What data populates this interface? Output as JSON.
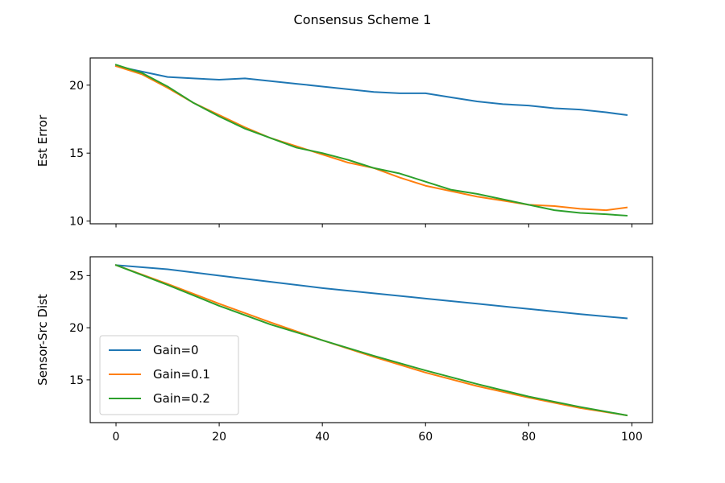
{
  "figure": {
    "title": "Consensus Scheme 1"
  },
  "chart_data": [
    {
      "type": "line",
      "title": "",
      "xlabel": "",
      "ylabel": "Est Error",
      "xlim": [
        -5,
        104
      ],
      "ylim": [
        9.8,
        22.0
      ],
      "xticks": [
        0,
        20,
        40,
        60,
        80,
        100
      ],
      "yticks": [
        10,
        15,
        20
      ],
      "show_xtick_labels": false,
      "grid": false,
      "x": [
        0,
        5,
        10,
        15,
        20,
        25,
        30,
        35,
        40,
        45,
        50,
        55,
        60,
        65,
        70,
        75,
        80,
        85,
        90,
        95,
        99
      ],
      "series": [
        {
          "name": "Gain=0",
          "color": "#1f77b4",
          "values": [
            21.4,
            21.0,
            20.6,
            20.5,
            20.4,
            20.5,
            20.3,
            20.1,
            19.9,
            19.7,
            19.5,
            19.4,
            19.4,
            19.1,
            18.8,
            18.6,
            18.5,
            18.3,
            18.2,
            18.0,
            17.8
          ]
        },
        {
          "name": "Gain=0.1",
          "color": "#ff7f0e",
          "values": [
            21.4,
            20.8,
            19.8,
            18.7,
            17.8,
            16.9,
            16.1,
            15.5,
            14.9,
            14.3,
            13.9,
            13.2,
            12.6,
            12.2,
            11.8,
            11.5,
            11.2,
            11.1,
            10.9,
            10.8,
            11.0
          ]
        },
        {
          "name": "Gain=0.2",
          "color": "#2ca02c",
          "values": [
            21.5,
            20.9,
            19.9,
            18.7,
            17.7,
            16.8,
            16.1,
            15.4,
            15.0,
            14.5,
            13.9,
            13.5,
            12.9,
            12.3,
            12.0,
            11.6,
            11.2,
            10.8,
            10.6,
            10.5,
            10.4
          ]
        }
      ]
    },
    {
      "type": "line",
      "title": "",
      "xlabel": "",
      "ylabel": "Sensor-Src Dist",
      "xlim": [
        -5,
        104
      ],
      "ylim": [
        10.9,
        26.8
      ],
      "xticks": [
        0,
        20,
        40,
        60,
        80,
        100
      ],
      "xtick_labels": [
        "0",
        "20",
        "40",
        "60",
        "80",
        "100"
      ],
      "yticks": [
        15,
        20,
        25
      ],
      "show_xtick_labels": true,
      "grid": false,
      "legend": {
        "position": "lower-left",
        "entries": [
          "Gain=0",
          "Gain=0.1",
          "Gain=0.2"
        ]
      },
      "x": [
        0,
        10,
        20,
        30,
        40,
        50,
        60,
        70,
        80,
        90,
        99
      ],
      "series": [
        {
          "name": "Gain=0",
          "color": "#1f77b4",
          "values": [
            26.0,
            25.6,
            25.0,
            24.4,
            23.8,
            23.3,
            22.8,
            22.3,
            21.8,
            21.3,
            20.9
          ]
        },
        {
          "name": "Gain=0.1",
          "color": "#ff7f0e",
          "values": [
            26.0,
            24.2,
            22.3,
            20.5,
            18.8,
            17.2,
            15.7,
            14.4,
            13.3,
            12.3,
            11.6
          ]
        },
        {
          "name": "Gain=0.2",
          "color": "#2ca02c",
          "values": [
            26.0,
            24.1,
            22.1,
            20.3,
            18.8,
            17.3,
            15.9,
            14.6,
            13.4,
            12.4,
            11.6
          ]
        }
      ]
    }
  ]
}
